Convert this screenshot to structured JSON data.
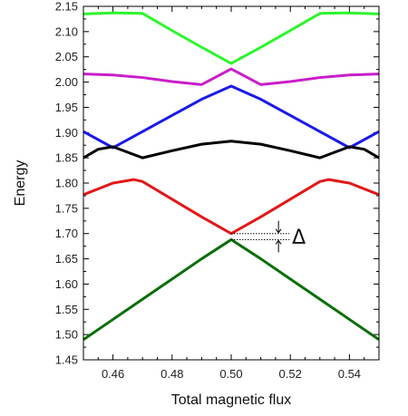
{
  "chart_data": {
    "type": "line",
    "title": "",
    "xlabel": "Total magnetic flux",
    "ylabel": "Energy",
    "xlim": [
      0.45,
      0.55
    ],
    "ylim": [
      1.45,
      2.15
    ],
    "xticks": [
      0.46,
      0.48,
      0.5,
      0.52,
      0.54
    ],
    "xtick_labels": [
      "0.46",
      "0.48",
      "0.50",
      "0.52",
      "0.54"
    ],
    "yticks": [
      1.45,
      1.5,
      1.55,
      1.6,
      1.65,
      1.7,
      1.75,
      1.8,
      1.85,
      1.9,
      1.95,
      2.0,
      2.05,
      2.1,
      2.15
    ],
    "ytick_labels": [
      "1.45",
      "1.50",
      "1.55",
      "1.60",
      "1.65",
      "1.70",
      "1.75",
      "1.80",
      "1.85",
      "1.90",
      "1.95",
      "2.00",
      "2.05",
      "2.10",
      "2.15"
    ],
    "grid": false,
    "legend": "none",
    "annotation": {
      "text": "Δ",
      "x_range": [
        0.5,
        0.516
      ],
      "y_top": 1.7,
      "y_bottom": 1.688
    },
    "series": [
      {
        "color": "#2cf52c",
        "x": [
          0.45,
          0.46,
          0.47,
          0.48,
          0.49,
          0.5,
          0.51,
          0.52,
          0.53,
          0.54,
          0.55
        ],
        "y": [
          2.135,
          2.137,
          2.136,
          2.102,
          2.069,
          2.037,
          2.069,
          2.102,
          2.136,
          2.137,
          2.135
        ]
      },
      {
        "color": "#c81ec8",
        "x": [
          0.45,
          0.46,
          0.47,
          0.48,
          0.49,
          0.5,
          0.51,
          0.52,
          0.53,
          0.54,
          0.55
        ],
        "y": [
          2.016,
          2.014,
          2.009,
          2.001,
          1.995,
          2.026,
          1.995,
          2.001,
          2.009,
          2.014,
          2.016
        ]
      },
      {
        "color": "#1a1ae6",
        "x": [
          0.45,
          0.46,
          0.47,
          0.48,
          0.49,
          0.5,
          0.51,
          0.52,
          0.53,
          0.54,
          0.55
        ],
        "y": [
          1.902,
          1.87,
          1.902,
          1.934,
          1.966,
          1.992,
          1.966,
          1.934,
          1.902,
          1.87,
          1.902
        ]
      },
      {
        "color": "#000000",
        "x": [
          0.45,
          0.455,
          0.46,
          0.47,
          0.48,
          0.49,
          0.5,
          0.51,
          0.52,
          0.53,
          0.54,
          0.545,
          0.55
        ],
        "y": [
          1.85,
          1.867,
          1.872,
          1.85,
          1.864,
          1.877,
          1.883,
          1.877,
          1.864,
          1.85,
          1.872,
          1.867,
          1.85
        ]
      },
      {
        "color": "#e01818",
        "x": [
          0.45,
          0.46,
          0.467,
          0.47,
          0.48,
          0.49,
          0.5,
          0.51,
          0.52,
          0.53,
          0.533,
          0.54,
          0.55
        ],
        "y": [
          1.777,
          1.8,
          1.807,
          1.803,
          1.768,
          1.733,
          1.7,
          1.733,
          1.768,
          1.803,
          1.807,
          1.8,
          1.777
        ]
      },
      {
        "color": "#0a6e0a",
        "x": [
          0.45,
          0.46,
          0.47,
          0.48,
          0.49,
          0.5,
          0.51,
          0.52,
          0.53,
          0.54,
          0.55
        ],
        "y": [
          1.49,
          1.53,
          1.57,
          1.61,
          1.65,
          1.688,
          1.65,
          1.61,
          1.57,
          1.53,
          1.49
        ]
      }
    ]
  }
}
